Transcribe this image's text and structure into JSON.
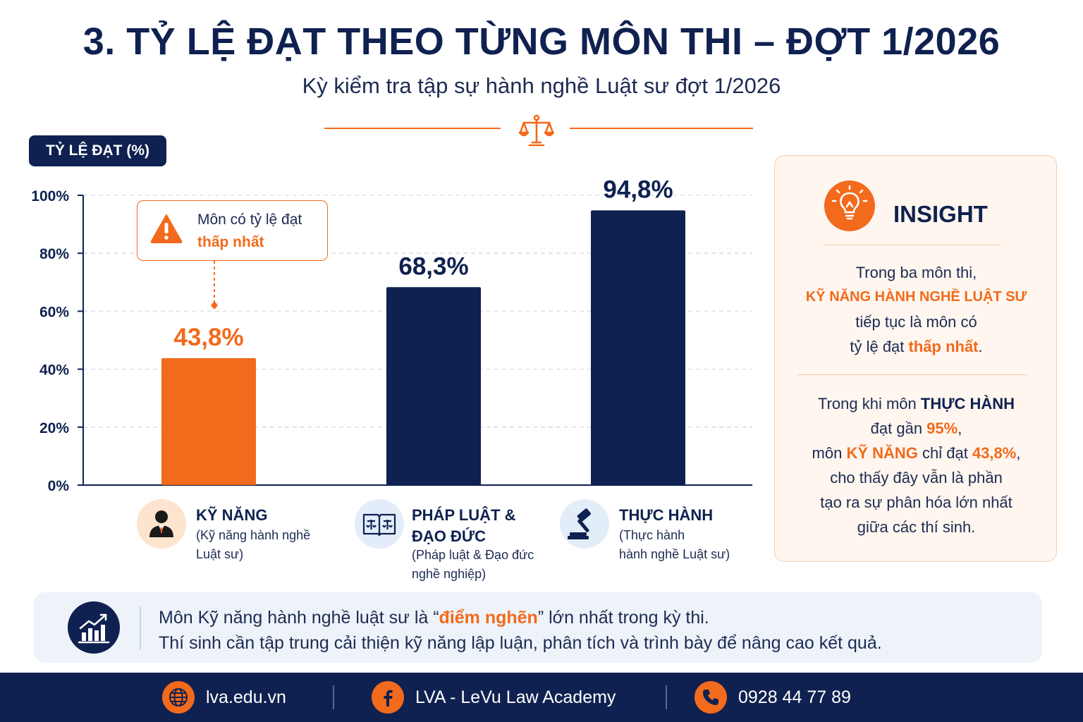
{
  "header": {
    "title": "3. TỶ LỆ ĐẠT THEO TỪNG MÔN THI – ĐỢT 1/2026",
    "subtitle": "Kỳ kiểm tra tập sự hành nghề Luật sư đợt 1/2026",
    "divider_icon": "scales-of-justice-icon"
  },
  "chart_data": {
    "type": "bar",
    "axis_badge": "TỶ LỆ ĐẠT (%)",
    "categories": [
      "KỸ NĂNG",
      "PHÁP LUẬT & ĐẠO ĐỨC",
      "THỰC HÀNH"
    ],
    "values": [
      43.8,
      68.3,
      94.8
    ],
    "value_labels": [
      "43,8%",
      "68,3%",
      "94,8%"
    ],
    "bar_colors": [
      "#f26a1b",
      "#0f2150",
      "#0f2150"
    ],
    "ylim": [
      0,
      100
    ],
    "yticks": [
      0,
      20,
      40,
      60,
      80,
      100
    ],
    "ytick_labels": [
      "0%",
      "20%",
      "40%",
      "60%",
      "80%",
      "100%"
    ],
    "grid": "horizontal dashed",
    "callout": {
      "line1": "Môn có tỷ lệ đạt",
      "line2": "thấp nhất",
      "target": "KỸ NĂNG",
      "icon": "warning-icon"
    }
  },
  "categories_detail": [
    {
      "name": "KỸ NĂNG",
      "desc": [
        "(Kỹ năng hành nghề",
        "Luật sư)"
      ],
      "icon": "lawyer-person-icon"
    },
    {
      "name_lines": [
        "PHÁP LUẬT &",
        "ĐẠO ĐỨC"
      ],
      "desc": [
        "(Pháp luật & Đạo đức",
        "nghề nghiệp)"
      ],
      "icon": "law-book-icon"
    },
    {
      "name": "THỰC HÀNH",
      "desc": [
        "(Thực hành",
        "hành nghề Luật sư)"
      ],
      "icon": "gavel-icon"
    }
  ],
  "insight": {
    "title": "INSIGHT",
    "icon": "lightbulb-icon",
    "p1": {
      "l1": "Trong ba môn thi,",
      "l2": "KỸ NĂNG HÀNH NGHỀ LUẬT SƯ",
      "l3": "tiếp tục là môn có",
      "l4a": "tỷ lệ đạt ",
      "l4b": "thấp nhất",
      "l4c": "."
    },
    "p2": {
      "l1a": "Trong khi môn ",
      "l1b": "THỰC HÀNH",
      "l2a": "đạt gần ",
      "l2b": "95%",
      "l2c": ",",
      "l3a": "môn ",
      "l3b": "KỸ NĂNG",
      "l3c": " chỉ đạt ",
      "l3d": "43,8%",
      "l3e": ",",
      "l4": "cho thấy đây vẫn là phần",
      "l5": "tạo ra sự phân hóa lớn nhất",
      "l6": "giữa các thí sinh."
    }
  },
  "note": {
    "icon": "growth-chart-icon",
    "l1a": "Môn Kỹ năng hành nghề luật sư là “",
    "l1b": "điểm nghẽn",
    "l1c": "” lớn nhất trong kỳ thi.",
    "l2": "Thí sinh cần tập trung cải thiện kỹ năng lập luận, phân tích và trình bày để nâng cao kết quả."
  },
  "footer": {
    "website": "lva.edu.vn",
    "facebook": "LVA - LeVu Law Academy",
    "phone": "0928 44 77 89",
    "icons": [
      "globe-icon",
      "facebook-icon",
      "phone-icon"
    ],
    "accent": "#f26a1b",
    "background": "#0f2150"
  }
}
